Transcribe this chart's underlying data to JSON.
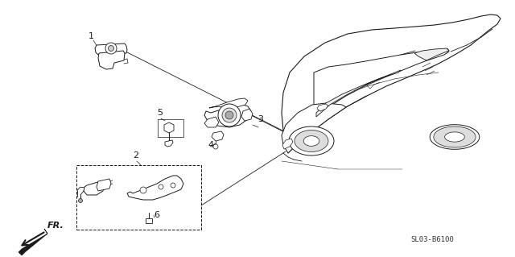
{
  "bg_color": "#ffffff",
  "part_number": "SL03-B6100",
  "lc": "#1a1a1a",
  "lw_main": 0.8,
  "lw_thin": 0.5
}
